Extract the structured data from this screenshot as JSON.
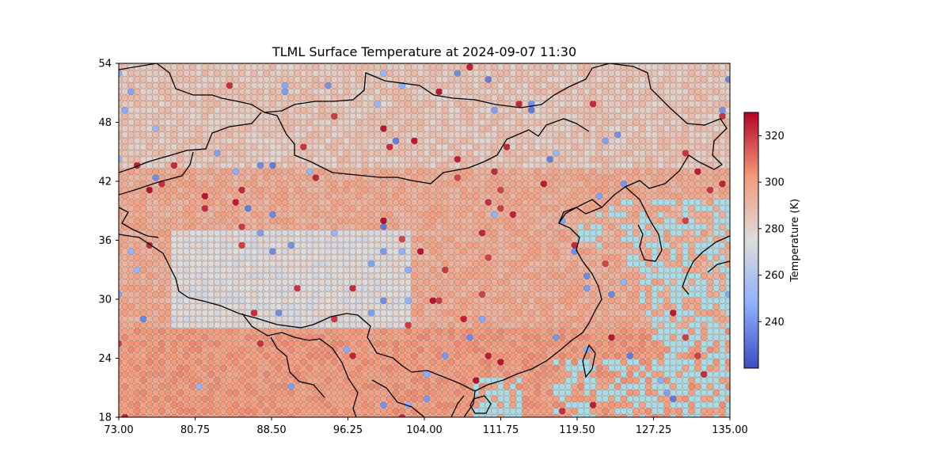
{
  "chart_data": {
    "type": "heatmap",
    "title": "TLML Surface Temperature at 2024-09-07 11:30",
    "xlim": [
      73.0,
      135.0
    ],
    "ylim": [
      18,
      54
    ],
    "x_ticks": [
      "73.00",
      "80.75",
      "88.50",
      "96.25",
      "104.00",
      "111.75",
      "119.50",
      "127.25",
      "135.00"
    ],
    "x_tick_values": [
      73.0,
      80.75,
      88.5,
      96.25,
      104.0,
      111.75,
      119.5,
      127.25,
      135.0
    ],
    "y_ticks": [
      "18",
      "24",
      "30",
      "36",
      "42",
      "48",
      "54"
    ],
    "y_tick_values": [
      18,
      24,
      30,
      36,
      42,
      48,
      54
    ],
    "grid_step_deg": 0.625,
    "colormap": "coolwarm",
    "colorbar": {
      "label": "Temperature (K)",
      "range": [
        220,
        330
      ],
      "ticks": [
        "240",
        "260",
        "280",
        "300",
        "320"
      ],
      "tick_values": [
        240,
        260,
        280,
        300,
        320
      ]
    },
    "ocean_color": "#a9dbe6",
    "coastline_color": "#000000"
  }
}
